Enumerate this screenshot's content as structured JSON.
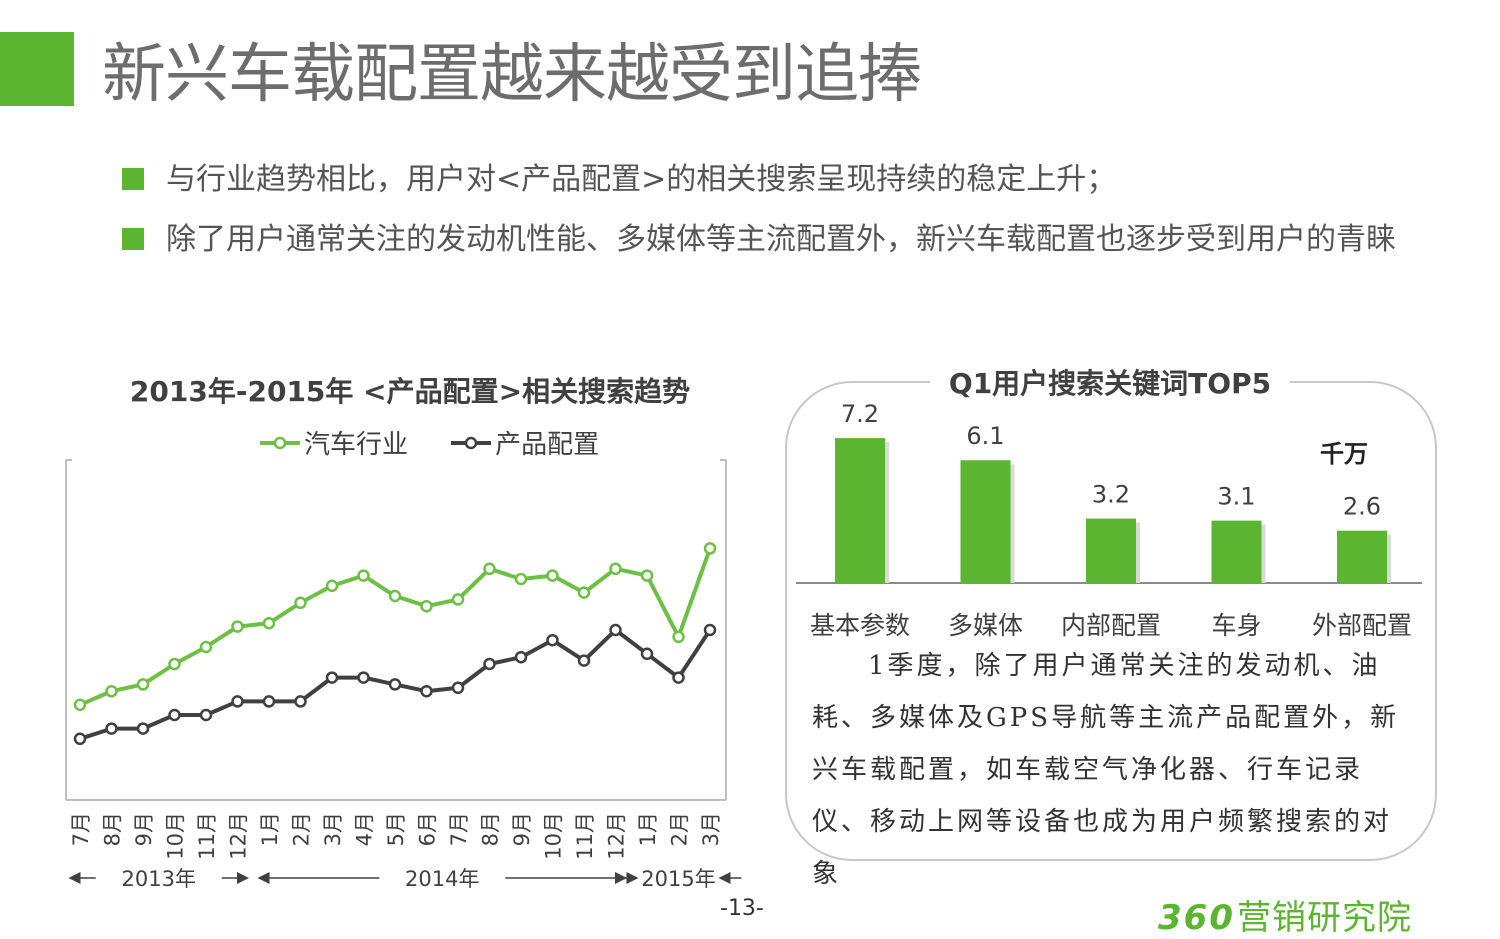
{
  "header": {
    "title": "新兴车载配置越来越受到追捧"
  },
  "colors": {
    "accent_green": "#5cb531",
    "line_green": "#6cc043",
    "line_dark": "#404040",
    "frame_gray": "#bfbfbf"
  },
  "bullets": [
    "与行业趋势相比，用户对<产品配置>的相关搜索呈现持续的稳定上升；",
    "除了用户通常关注的发动机性能、多媒体等主流配置外，新兴车载配置也逐步受到用户的青睐"
  ],
  "chart_data": [
    {
      "type": "line",
      "title": "2013年-2015年 <产品配置>相关搜索趋势",
      "categories": [
        "7月",
        "8月",
        "9月",
        "10月",
        "11月",
        "12月",
        "1月",
        "2月",
        "3月",
        "4月",
        "5月",
        "6月",
        "7月",
        "8月",
        "9月",
        "10月",
        "11月",
        "12月",
        "1月",
        "2月",
        "3月"
      ],
      "year_groups": [
        {
          "label": "2013年",
          "start": 0,
          "end": 5
        },
        {
          "label": "2014年",
          "start": 6,
          "end": 17
        },
        {
          "label": "2015年",
          "start": 18,
          "end": 20
        }
      ],
      "series": [
        {
          "name": "汽车行业",
          "color": "#6cc043",
          "values": [
            28,
            32,
            34,
            40,
            45,
            51,
            52,
            58,
            63,
            66,
            60,
            57,
            59,
            68,
            65,
            66,
            61,
            68,
            66,
            48,
            74
          ]
        },
        {
          "name": "产品配置",
          "color": "#404040",
          "values": [
            18,
            21,
            21,
            25,
            25,
            29,
            29,
            29,
            36,
            36,
            34,
            32,
            33,
            40,
            42,
            47,
            41,
            50,
            43,
            36,
            50
          ]
        }
      ],
      "ylim": [
        0,
        100
      ],
      "legend_position": "top",
      "grid": false
    },
    {
      "type": "bar",
      "title": "Q1用户搜索关键词TOP5",
      "unit": "千万",
      "categories": [
        "基本参数",
        "多媒体",
        "内部配置",
        "车身",
        "外部配置"
      ],
      "values": [
        7.2,
        6.1,
        3.2,
        3.1,
        2.6
      ],
      "value_labels": [
        "7.2",
        "6.1",
        "3.2",
        "3.1",
        "2.6"
      ],
      "ylim": [
        0,
        8
      ],
      "color": "#5cb531"
    }
  ],
  "note": "1季度，除了用户通常关注的发动机、油耗、多媒体及GPS导航等主流产品配置外，新兴车载配置，如车载空气净化器、行车记录仪、移动上网等设备也成为用户频繁搜索的对象",
  "footer": {
    "page_number": "-13-",
    "brand_number": "360",
    "brand_text": "营销研究院"
  }
}
